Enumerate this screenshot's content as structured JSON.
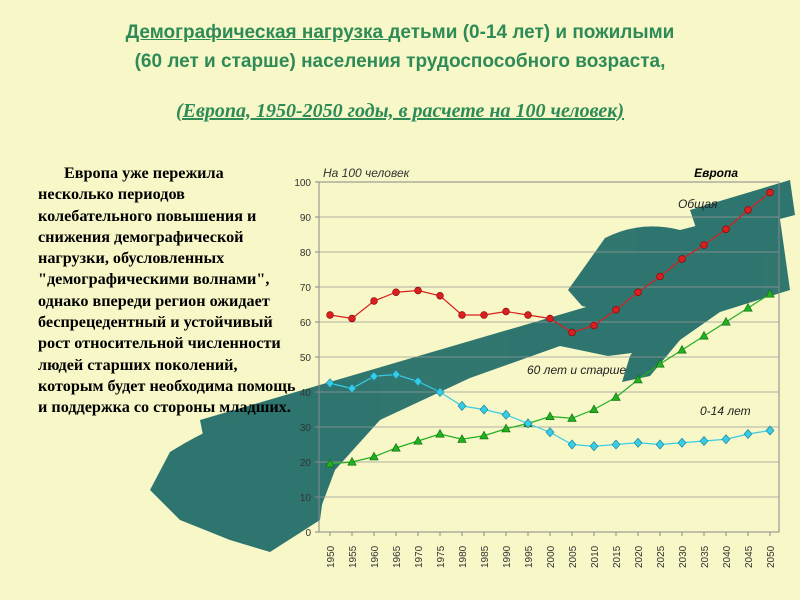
{
  "title": {
    "link_text": "Демографическая нагрузка ",
    "line1_rest": "детьми (0-14 лет) и пожилыми",
    "line2": "(60 лет и старше) населения трудоспособного возраста,"
  },
  "subtitle": "(Европа, 1950-2050 годы, в расчете на 100 человек)",
  "body_text": "Европа уже пережила несколько периодов колебательного повышения и снижения демографической нагрузки, обусловленных \"демографическими волнами\", однако впереди регион ожидает беспрецедентный и устойчивый рост относительной численности людей старших поколений, которым будет необходима помощь и поддержка со стороны младших.",
  "colors": {
    "background": "#f7f7c8",
    "title": "#2e8b57",
    "hands": "#1f6b68",
    "total_series": "#d91f1f",
    "elderly_series": "#22b022",
    "children_series": "#38cde6"
  },
  "icons": [
    "two-hands-illustration"
  ],
  "chart_data": {
    "type": "line",
    "corner_label": "На 100 человек",
    "region_label": "Европа",
    "ylim": [
      0,
      100
    ],
    "yticks": [
      0,
      10,
      20,
      30,
      40,
      50,
      60,
      70,
      80,
      90,
      100
    ],
    "grid": true,
    "x": [
      "1950",
      "1955",
      "1960",
      "1965",
      "1970",
      "1975",
      "1980",
      "1985",
      "1990",
      "1995",
      "2000",
      "2005",
      "2010",
      "2015",
      "2020",
      "2025",
      "2030",
      "2035",
      "2040",
      "2045",
      "2050"
    ],
    "series": [
      {
        "name": "Общая",
        "marker": "circle",
        "values": [
          62,
          61,
          66,
          68.5,
          69,
          67.5,
          62,
          62,
          63,
          62,
          61,
          57,
          59,
          63.5,
          68.5,
          73,
          78,
          82,
          86.5,
          92,
          97
        ]
      },
      {
        "name": "60 лет и старше",
        "marker": "triangle",
        "values": [
          19.5,
          20,
          21.5,
          24,
          26,
          28,
          26.5,
          27.5,
          29.5,
          31,
          33,
          32.5,
          35,
          38.5,
          43.5,
          48,
          52,
          56,
          60,
          64,
          68
        ]
      },
      {
        "name": "0-14 лет",
        "marker": "diamond",
        "values": [
          42.5,
          41,
          44.5,
          45,
          43,
          40,
          36,
          35,
          33.5,
          31,
          28.5,
          25,
          24.5,
          25,
          25.5,
          25,
          25.5,
          26,
          26.5,
          28,
          29
        ]
      }
    ]
  }
}
